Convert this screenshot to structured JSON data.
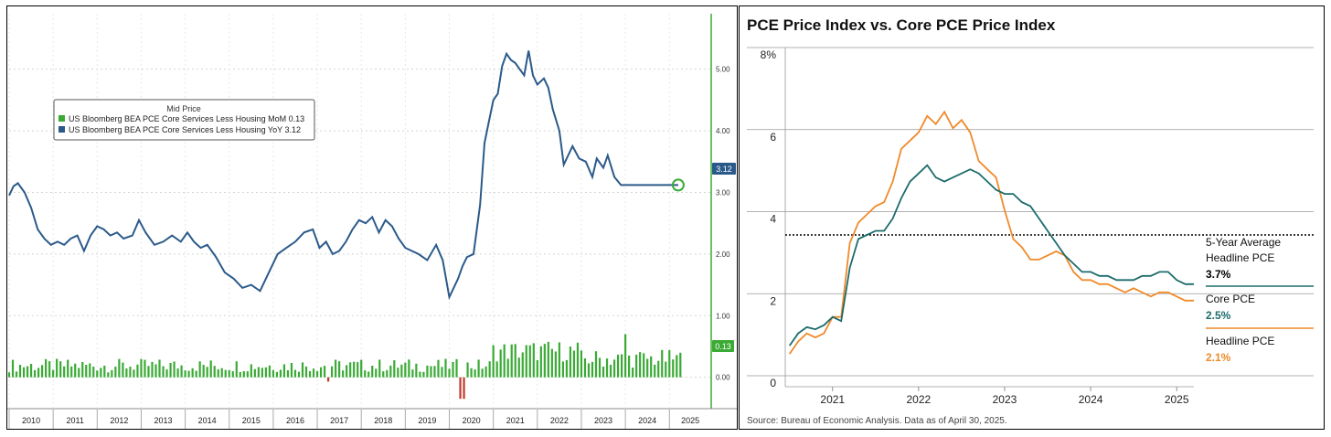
{
  "left_chart": {
    "legend_title": "Mid Price",
    "legend_items": [
      {
        "label": "US Bloomberg BEA PCE Core Services Less Housing MoM 0.13",
        "color": "#3aaa35"
      },
      {
        "label": "US Bloomberg BEA PCE Core Services Less Housing YoY 3.12",
        "color": "#2b5a8a"
      }
    ],
    "last_value_badge": "3.12",
    "mom_badge": "0.13",
    "colors": {
      "yoy": "#2b5a8a",
      "mom_pos": "#3aaa35",
      "mom_neg": "#c0392b",
      "badge_yoy": "#2b5a8a",
      "badge_mom": "#3aaa35",
      "axis": "#3aaa35"
    }
  },
  "right_chart": {
    "title": "PCE Price Index vs. Core PCE Price Index",
    "source": "Source: Bureau of Economic Analysis. Data as of April 30, 2025.",
    "annotations": {
      "avg_label_1": "5-Year Average",
      "avg_label_2": "Headline PCE",
      "avg_value": "3.7%",
      "core_label": "Core PCE",
      "core_value": "2.5%",
      "headline_label": "Headline PCE",
      "headline_value": "2.1%"
    },
    "colors": {
      "core": "#1d6b6b",
      "headline": "#f08a2a",
      "avg": "#000000"
    }
  },
  "chart_data": [
    {
      "type": "line",
      "title": "",
      "legend": [
        "US Bloomberg BEA PCE Core Services Less Housing MoM 0.13",
        "US Bloomberg BEA PCE Core Services Less Housing YoY 3.12"
      ],
      "x_tick_labels": [
        "2010",
        "2011",
        "2012",
        "2013",
        "2014",
        "2015",
        "2016",
        "2017",
        "2018",
        "2019",
        "2020",
        "2021",
        "2022",
        "2023",
        "2024",
        "2025"
      ],
      "y_tick_labels": [
        "5.00",
        "4.00",
        "3.00",
        "2.00",
        "1.00",
        "0.00"
      ],
      "ylim": [
        -0.45,
        5.9
      ],
      "xlim": [
        2010.0,
        2025.95
      ],
      "series": [
        {
          "name": "YoY",
          "x": [
            2010.0,
            2010.1,
            2010.2,
            2010.35,
            2010.5,
            2010.65,
            2010.8,
            2010.95,
            2011.1,
            2011.25,
            2011.4,
            2011.55,
            2011.7,
            2011.85,
            2012.0,
            2012.15,
            2012.3,
            2012.45,
            2012.6,
            2012.8,
            2012.95,
            2013.1,
            2013.3,
            2013.5,
            2013.7,
            2013.9,
            2014.05,
            2014.2,
            2014.35,
            2014.5,
            2014.7,
            2014.9,
            2015.1,
            2015.3,
            2015.5,
            2015.7,
            2015.9,
            2016.1,
            2016.3,
            2016.5,
            2016.7,
            2016.9,
            2017.05,
            2017.2,
            2017.35,
            2017.5,
            2017.65,
            2017.8,
            2017.95,
            2018.1,
            2018.25,
            2018.4,
            2018.55,
            2018.7,
            2018.85,
            2019.0,
            2019.15,
            2019.3,
            2019.5,
            2019.7,
            2019.85,
            2020.0,
            2020.1,
            2020.2,
            2020.3,
            2020.4,
            2020.55,
            2020.7,
            2020.8,
            2020.9,
            2021.0,
            2021.1,
            2021.2,
            2021.3,
            2021.4,
            2021.5,
            2021.6,
            2021.7,
            2021.8,
            2021.9,
            2022.0,
            2022.15,
            2022.25,
            2022.35,
            2022.5,
            2022.6,
            2022.7,
            2022.8,
            2022.95,
            2023.1,
            2023.25,
            2023.35,
            2023.5,
            2023.6,
            2023.75,
            2023.9,
            2024.05,
            2024.2,
            2024.35,
            2024.5,
            2024.65,
            2024.8,
            2024.95,
            2025.1,
            2025.2,
            2025.3
          ],
          "values": [
            2.95,
            3.1,
            3.15,
            3.0,
            2.75,
            2.4,
            2.25,
            2.15,
            2.2,
            2.15,
            2.25,
            2.3,
            2.05,
            2.3,
            2.45,
            2.4,
            2.3,
            2.35,
            2.25,
            2.3,
            2.55,
            2.35,
            2.15,
            2.2,
            2.3,
            2.2,
            2.35,
            2.2,
            2.1,
            2.15,
            1.95,
            1.7,
            1.6,
            1.45,
            1.5,
            1.4,
            1.7,
            2.0,
            2.1,
            2.2,
            2.35,
            2.4,
            2.1,
            2.2,
            2.0,
            2.05,
            2.2,
            2.4,
            2.55,
            2.5,
            2.6,
            2.35,
            2.55,
            2.45,
            2.25,
            2.1,
            2.05,
            2.0,
            1.9,
            2.15,
            1.9,
            1.3,
            1.45,
            1.6,
            1.8,
            1.95,
            2.0,
            2.8,
            3.8,
            4.15,
            4.5,
            4.6,
            5.05,
            5.25,
            5.15,
            5.1,
            5.0,
            4.9,
            5.3,
            4.9,
            4.75,
            4.85,
            4.7,
            4.35,
            4.0,
            3.45,
            3.6,
            3.75,
            3.55,
            3.5,
            3.25,
            3.55,
            3.4,
            3.6,
            3.25,
            3.12,
            3.12,
            3.12,
            3.12,
            3.12,
            3.12,
            3.12,
            3.12,
            3.12,
            3.12,
            3.12
          ]
        }
      ]
    },
    {
      "type": "line",
      "title": "PCE Price Index vs. Core PCE Price Index",
      "source": "Source: Bureau of Economic Analysis. Data as of April 30, 2025.",
      "x_tick_labels": [
        "2021",
        "2022",
        "2023",
        "2024",
        "2025"
      ],
      "y_tick_labels": [
        "8%",
        "6",
        "4",
        "2",
        "0"
      ],
      "ylim": [
        0,
        8
      ],
      "xlim": [
        2020.45,
        2025.2
      ],
      "reference_line": {
        "name": "5-Year Average Headline PCE",
        "value": 3.7
      },
      "series": [
        {
          "name": "Core PCE",
          "value_label": "2.5%",
          "x": [
            2020.5,
            2020.6,
            2020.7,
            2020.8,
            2020.9,
            2021.0,
            2021.1,
            2021.2,
            2021.3,
            2021.4,
            2021.5,
            2021.6,
            2021.7,
            2021.8,
            2021.9,
            2022.0,
            2022.1,
            2022.2,
            2022.3,
            2022.4,
            2022.5,
            2022.6,
            2022.7,
            2022.8,
            2022.9,
            2023.0,
            2023.1,
            2023.2,
            2023.3,
            2023.4,
            2023.5,
            2023.6,
            2023.7,
            2023.8,
            2023.9,
            2024.0,
            2024.1,
            2024.2,
            2024.3,
            2024.4,
            2024.5,
            2024.6,
            2024.7,
            2024.8,
            2024.9,
            2025.0,
            2025.1,
            2025.2
          ],
          "values": [
            1.0,
            1.3,
            1.45,
            1.4,
            1.5,
            1.7,
            1.6,
            2.9,
            3.6,
            3.7,
            3.8,
            3.8,
            4.1,
            4.6,
            5.0,
            5.2,
            5.4,
            5.1,
            5.0,
            5.1,
            5.2,
            5.3,
            5.2,
            5.0,
            4.8,
            4.7,
            4.7,
            4.5,
            4.4,
            4.1,
            3.8,
            3.5,
            3.2,
            3.0,
            2.8,
            2.8,
            2.7,
            2.7,
            2.6,
            2.6,
            2.6,
            2.7,
            2.7,
            2.8,
            2.8,
            2.6,
            2.5,
            2.5
          ]
        },
        {
          "name": "Headline PCE",
          "value_label": "2.1%",
          "x": [
            2020.5,
            2020.6,
            2020.7,
            2020.8,
            2020.9,
            2021.0,
            2021.1,
            2021.2,
            2021.3,
            2021.4,
            2021.5,
            2021.6,
            2021.7,
            2021.8,
            2021.9,
            2022.0,
            2022.1,
            2022.2,
            2022.3,
            2022.4,
            2022.5,
            2022.6,
            2022.7,
            2022.8,
            2022.9,
            2023.0,
            2023.1,
            2023.2,
            2023.3,
            2023.4,
            2023.5,
            2023.6,
            2023.7,
            2023.8,
            2023.9,
            2024.0,
            2024.1,
            2024.2,
            2024.3,
            2024.4,
            2024.5,
            2024.6,
            2024.7,
            2024.8,
            2024.9,
            2025.0,
            2025.1,
            2025.2
          ],
          "values": [
            0.8,
            1.1,
            1.3,
            1.2,
            1.3,
            1.7,
            1.7,
            3.5,
            4.0,
            4.2,
            4.4,
            4.5,
            5.0,
            5.8,
            6.0,
            6.2,
            6.6,
            6.4,
            6.7,
            6.3,
            6.5,
            6.2,
            5.5,
            5.3,
            5.1,
            4.3,
            3.6,
            3.4,
            3.1,
            3.1,
            3.2,
            3.3,
            3.2,
            2.8,
            2.6,
            2.6,
            2.5,
            2.5,
            2.4,
            2.3,
            2.4,
            2.3,
            2.2,
            2.3,
            2.3,
            2.2,
            2.1,
            2.1
          ]
        }
      ]
    }
  ]
}
